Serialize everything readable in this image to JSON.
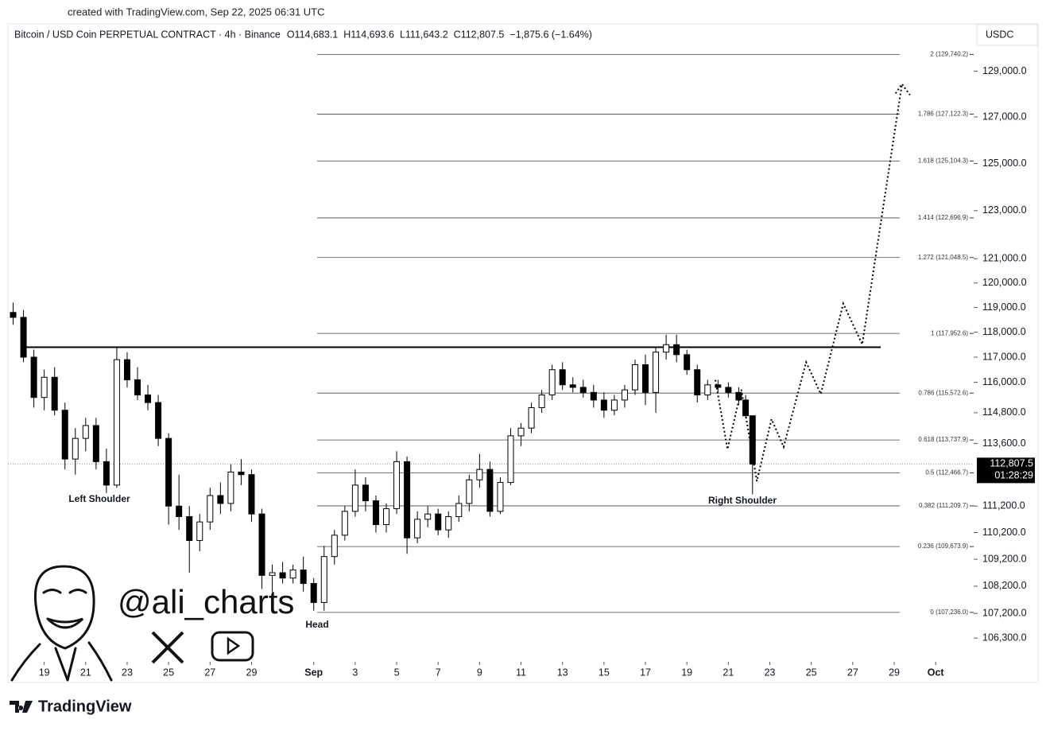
{
  "header": {
    "created": "created with TradingView.com, Sep 22, 2025 06:31 UTC"
  },
  "overlay": {
    "handle": "@ali_charts"
  },
  "footer": {
    "brand": "TradingView"
  },
  "chart_data": {
    "type": "candlestick",
    "title": "Bitcoin / USD Coin PERPETUAL CONTRACT · 4h · Binance",
    "ohlc": [
      "O114,683.1",
      "H114,693.6",
      "L111,643.2",
      "C112,807.5"
    ],
    "change": "−1,875.6 (−1.64%)",
    "currency": "USDC",
    "log_scale": true,
    "up_color": "#ffffff",
    "down_color": "#000000",
    "xlim": [
      "2025-08-17 06:00",
      "2025-10-02 20:00"
    ],
    "ylim": [
      105500,
      131100
    ],
    "yticks": [
      {
        "value": 129000,
        "label": "129,000.0"
      },
      {
        "value": 127000,
        "label": "127,000.0"
      },
      {
        "value": 125000,
        "label": "125,000.0"
      },
      {
        "value": 123000,
        "label": "123,000.0"
      },
      {
        "value": 121000,
        "label": "121,000.0"
      },
      {
        "value": 120000,
        "label": "120,000.0"
      },
      {
        "value": 119000,
        "label": "119,000.0"
      },
      {
        "value": 118000,
        "label": "118,000.0"
      },
      {
        "value": 117000,
        "label": "117,000.0"
      },
      {
        "value": 116000,
        "label": "116,000.0"
      },
      {
        "value": 114800,
        "label": "114,800.0"
      },
      {
        "value": 113600,
        "label": "113,600.0"
      },
      {
        "value": 111200,
        "label": "111,200.0"
      },
      {
        "value": 110200,
        "label": "110,200.0"
      },
      {
        "value": 109200,
        "label": "109,200.0"
      },
      {
        "value": 108200,
        "label": "108,200.0"
      },
      {
        "value": 107200,
        "label": "107,200.0"
      },
      {
        "value": 106300,
        "label": "106,300.0"
      }
    ],
    "xticks": [
      {
        "value": "2025-08-19",
        "label": "19"
      },
      {
        "value": "2025-08-21",
        "label": "21"
      },
      {
        "value": "2025-08-23",
        "label": "23"
      },
      {
        "value": "2025-08-25",
        "label": "25"
      },
      {
        "value": "2025-08-27",
        "label": "27"
      },
      {
        "value": "2025-08-29",
        "label": "29"
      },
      {
        "value": "2025-09-01",
        "label": "Sep"
      },
      {
        "value": "2025-09-03",
        "label": "3"
      },
      {
        "value": "2025-09-05",
        "label": "5"
      },
      {
        "value": "2025-09-07",
        "label": "7"
      },
      {
        "value": "2025-09-09",
        "label": "9"
      },
      {
        "value": "2025-09-11",
        "label": "11"
      },
      {
        "value": "2025-09-13",
        "label": "13"
      },
      {
        "value": "2025-09-15",
        "label": "15"
      },
      {
        "value": "2025-09-17",
        "label": "17"
      },
      {
        "value": "2025-09-19",
        "label": "19"
      },
      {
        "value": "2025-09-21",
        "label": "21"
      },
      {
        "value": "2025-09-23",
        "label": "23"
      },
      {
        "value": "2025-09-25",
        "label": "25"
      },
      {
        "value": "2025-09-27",
        "label": "27"
      },
      {
        "value": "2025-09-29",
        "label": "29"
      },
      {
        "value": "2025-10-01",
        "label": "Oct"
      }
    ],
    "candles": {
      "x": [
        "2025-08-17 12:00",
        "2025-08-18 00:00",
        "2025-08-18 12:00",
        "2025-08-19 00:00",
        "2025-08-19 12:00",
        "2025-08-20 00:00",
        "2025-08-20 12:00",
        "2025-08-21 00:00",
        "2025-08-21 12:00",
        "2025-08-22 00:00",
        "2025-08-22 12:00",
        "2025-08-23 00:00",
        "2025-08-23 12:00",
        "2025-08-24 00:00",
        "2025-08-24 12:00",
        "2025-08-25 00:00",
        "2025-08-25 12:00",
        "2025-08-26 00:00",
        "2025-08-26 12:00",
        "2025-08-27 00:00",
        "2025-08-27 12:00",
        "2025-08-28 00:00",
        "2025-08-28 12:00",
        "2025-08-29 00:00",
        "2025-08-29 12:00",
        "2025-08-30 00:00",
        "2025-08-30 12:00",
        "2025-08-31 00:00",
        "2025-08-31 12:00",
        "2025-09-01 00:00",
        "2025-09-01 12:00",
        "2025-09-02 00:00",
        "2025-09-02 12:00",
        "2025-09-03 00:00",
        "2025-09-03 12:00",
        "2025-09-04 00:00",
        "2025-09-04 12:00",
        "2025-09-05 00:00",
        "2025-09-05 12:00",
        "2025-09-06 00:00",
        "2025-09-06 12:00",
        "2025-09-07 00:00",
        "2025-09-07 12:00",
        "2025-09-08 00:00",
        "2025-09-08 12:00",
        "2025-09-09 00:00",
        "2025-09-09 12:00",
        "2025-09-10 00:00",
        "2025-09-10 12:00",
        "2025-09-11 00:00",
        "2025-09-11 12:00",
        "2025-09-12 00:00",
        "2025-09-12 12:00",
        "2025-09-13 00:00",
        "2025-09-13 12:00",
        "2025-09-14 00:00",
        "2025-09-14 12:00",
        "2025-09-15 00:00",
        "2025-09-15 12:00",
        "2025-09-16 00:00",
        "2025-09-16 12:00",
        "2025-09-17 00:00",
        "2025-09-17 12:00",
        "2025-09-18 00:00",
        "2025-09-18 12:00",
        "2025-09-19 00:00",
        "2025-09-19 12:00",
        "2025-09-20 00:00",
        "2025-09-20 12:00",
        "2025-09-21 00:00",
        "2025-09-21 12:00",
        "2025-09-21 20:00",
        "2025-09-22 04:00"
      ],
      "open": [
        118800,
        118600,
        117000,
        115400,
        116200,
        114900,
        113000,
        113800,
        114300,
        112900,
        112000,
        116900,
        116100,
        115500,
        115200,
        113800,
        111200,
        110800,
        109900,
        110600,
        111600,
        111300,
        112500,
        112400,
        110900,
        108600,
        108700,
        108500,
        108800,
        108300,
        107600,
        109300,
        110100,
        111000,
        112000,
        111400,
        110500,
        111100,
        112900,
        110000,
        110700,
        110900,
        110300,
        110800,
        111300,
        112200,
        112600,
        111000,
        112100,
        113900,
        114200,
        115000,
        115500,
        116500,
        115900,
        115800,
        115600,
        115300,
        114900,
        115300,
        115700,
        116700,
        115600,
        117200,
        117500,
        117100,
        116500,
        115500,
        115900,
        115800,
        115600,
        115300,
        114683.1
      ],
      "high": [
        119200,
        118900,
        117300,
        116500,
        116600,
        115200,
        114200,
        114600,
        114600,
        113400,
        117400,
        117200,
        116600,
        115900,
        115500,
        114000,
        112400,
        111200,
        110900,
        111900,
        112100,
        112800,
        113000,
        112600,
        111100,
        109000,
        109100,
        109000,
        109300,
        108500,
        109700,
        110300,
        111200,
        112600,
        112300,
        111600,
        111300,
        113300,
        113100,
        111000,
        111200,
        111100,
        111000,
        111600,
        112400,
        113200,
        112900,
        112300,
        114200,
        114400,
        115200,
        115700,
        116700,
        116800,
        116200,
        116100,
        115900,
        115600,
        115500,
        115900,
        116900,
        117100,
        117400,
        117900,
        117900,
        117300,
        116700,
        116100,
        116100,
        116000,
        115800,
        115500,
        114693.6
      ],
      "low": [
        118300,
        116800,
        115000,
        114900,
        114700,
        112600,
        112400,
        113300,
        112600,
        111700,
        111900,
        115800,
        115300,
        114900,
        113500,
        110500,
        110300,
        108700,
        109500,
        110300,
        110900,
        111000,
        112000,
        110600,
        108100,
        108000,
        108300,
        108300,
        108000,
        107300,
        107300,
        109000,
        109900,
        110800,
        111000,
        110200,
        110200,
        110900,
        109400,
        109800,
        110400,
        110100,
        110000,
        110600,
        111000,
        111900,
        110800,
        110900,
        112000,
        113500,
        114000,
        114800,
        115300,
        115700,
        115600,
        115400,
        115000,
        114600,
        114700,
        115000,
        115500,
        115100,
        114800,
        116900,
        116800,
        116300,
        115200,
        115300,
        115600,
        115400,
        115100,
        114600,
        111643.2
      ],
      "close": [
        118600,
        117000,
        115400,
        116200,
        114900,
        113000,
        113800,
        114300,
        112900,
        112000,
        116900,
        116100,
        115500,
        115200,
        113800,
        111200,
        110800,
        109900,
        110600,
        111600,
        111300,
        112500,
        112400,
        110900,
        108600,
        108700,
        108500,
        108800,
        108300,
        107600,
        109300,
        110100,
        111000,
        112000,
        111400,
        110500,
        111100,
        112900,
        110000,
        110700,
        110900,
        110300,
        110800,
        111300,
        112200,
        112600,
        111000,
        112100,
        113900,
        114200,
        115000,
        115500,
        116500,
        115900,
        115800,
        115600,
        115300,
        114900,
        115300,
        115700,
        116700,
        115600,
        117200,
        117500,
        117100,
        116500,
        115500,
        115900,
        115800,
        115600,
        115300,
        114683.1,
        112807.5
      ]
    },
    "fib_levels": [
      {
        "value": 129740.2,
        "label": "2 (129,740.2)"
      },
      {
        "value": 127122.3,
        "label": "1.786 (127,122.3)"
      },
      {
        "value": 125104.3,
        "label": "1.618 (125,104.3)"
      },
      {
        "value": 122696.9,
        "label": "1.414 (122,696.9)"
      },
      {
        "value": 121048.5,
        "label": "1.272 (121,048.5)"
      },
      {
        "value": 117952.6,
        "label": "1 (117,952.6)"
      },
      {
        "value": 115572.6,
        "label": "0.786 (115,572.6)"
      },
      {
        "value": 113737.9,
        "label": "0.618 (113,737.9)"
      },
      {
        "value": 112466.7,
        "label": "0.5 (112,466.7)"
      },
      {
        "value": 111209.7,
        "label": "0.382 (111,209.7)"
      },
      {
        "value": 109673.9,
        "label": "0.236 (109,673.9)"
      },
      {
        "value": 107236.0,
        "label": "0 (107,236.0)"
      }
    ],
    "neckline": 117400,
    "projection": {
      "x": [
        "2025-09-20 09:00",
        "2025-09-20 23:00",
        "2025-09-21 15:00",
        "2025-09-22 09:00",
        "2025-09-23 02:00",
        "2025-09-23 16:00",
        "2025-09-24 18:00",
        "2025-09-25 11:00",
        "2025-09-26 13:00",
        "2025-09-27 11:00",
        "2025-09-29 09:00"
      ],
      "y": [
        116090,
        113380,
        115710,
        112150,
        114550,
        113470,
        116800,
        115540,
        119160,
        117510,
        128440
      ]
    },
    "last_price": {
      "value": 112807.5,
      "label": "112,807.5"
    },
    "countdown": "01:28:29",
    "annotations": [
      "Left Shoulder",
      "Head",
      "Right Shoulder"
    ]
  }
}
